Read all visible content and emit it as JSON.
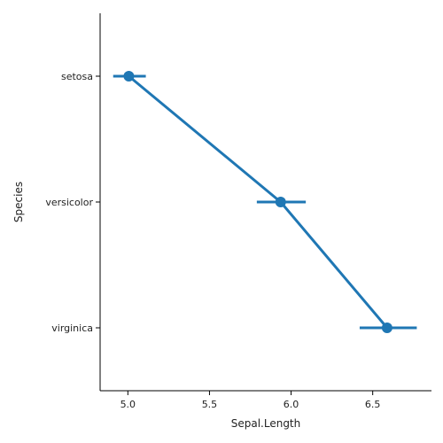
{
  "chart_data": {
    "type": "point",
    "orientation": "horizontal",
    "xlabel": "Sepal.Length",
    "ylabel": "Species",
    "xlim": [
      4.83,
      6.86
    ],
    "xticks": [
      5.0,
      5.5,
      6.0,
      6.5
    ],
    "x_tick_labels": [
      "5.0",
      "5.5",
      "6.0",
      "6.5"
    ],
    "categories": [
      "setosa",
      "versicolor",
      "virginica"
    ],
    "series": [
      {
        "values": [
          5.006,
          5.936,
          6.588
        ],
        "ci_low": [
          4.91,
          5.79,
          6.42
        ],
        "ci_high": [
          5.11,
          6.09,
          6.77
        ]
      }
    ],
    "color": "#1f77b4",
    "grid": false,
    "spines": [
      "left",
      "bottom"
    ]
  }
}
